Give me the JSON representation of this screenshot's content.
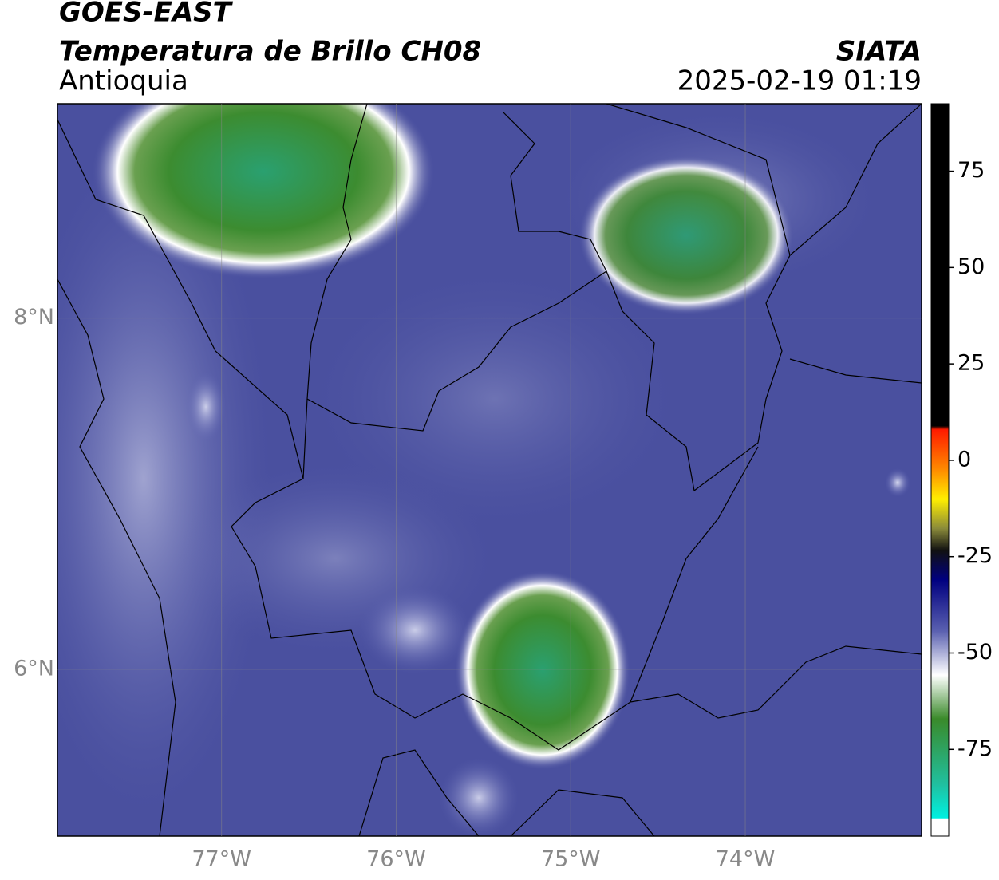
{
  "header": {
    "title": "GOES-EAST",
    "subtitle": "Temperatura de Brillo CH08",
    "region": "Antioquia",
    "source": "SIATA",
    "datetime": "2025-02-19 01:19"
  },
  "map": {
    "xlim": [
      -77.94,
      -72.99
    ],
    "ylim": [
      5.05,
      9.22
    ],
    "xticks": [
      {
        "value": -77,
        "label": "77°W"
      },
      {
        "value": -76,
        "label": "76°W"
      },
      {
        "value": -75,
        "label": "75°W"
      },
      {
        "value": -74,
        "label": "74°W"
      }
    ],
    "yticks": [
      {
        "value": 8,
        "label": "8°N"
      },
      {
        "value": 6,
        "label": "6°N"
      }
    ],
    "grid": true
  },
  "colorbar": {
    "range": [
      -97.5,
      92.5
    ],
    "ticks": [
      75,
      50,
      25,
      0,
      -25,
      -50,
      -75
    ]
  }
}
